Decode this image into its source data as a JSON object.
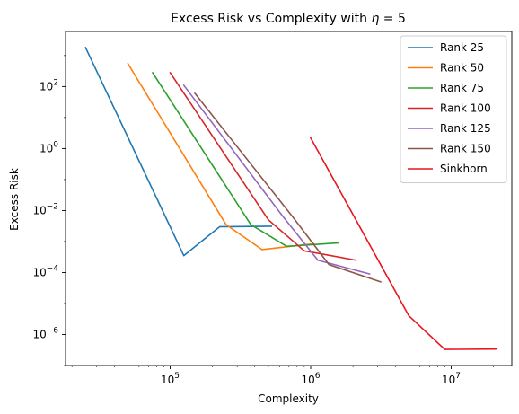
{
  "chart_data": {
    "type": "line",
    "title": "Excess Risk vs Complexity with η = 5",
    "title_parts": {
      "before": "Excess Risk vs Complexity with ",
      "symbol": "η",
      "after": " = 5"
    },
    "xlabel": "Complexity",
    "ylabel": "Excess Risk",
    "x_scale": "log",
    "y_scale": "log",
    "xlim": [
      18000,
      27000000
    ],
    "ylim": [
      1e-07,
      6000
    ],
    "x_ticks": [
      {
        "value": 100000,
        "base": "10",
        "exp": "5"
      },
      {
        "value": 1000000,
        "base": "10",
        "exp": "6"
      },
      {
        "value": 10000000,
        "base": "10",
        "exp": "7"
      }
    ],
    "y_ticks": [
      {
        "value": 1e-06,
        "base": "10",
        "exp": "−6"
      },
      {
        "value": 0.0001,
        "base": "10",
        "exp": "−4"
      },
      {
        "value": 0.01,
        "base": "10",
        "exp": "−2"
      },
      {
        "value": 1,
        "base": "10",
        "exp": "0"
      },
      {
        "value": 100,
        "base": "10",
        "exp": "2"
      }
    ],
    "grid": false,
    "legend_position": "top-right",
    "series": [
      {
        "name": "Rank 25",
        "color": "#1f77b4",
        "x": [
          25000,
          125000,
          225000,
          525000
        ],
        "y": [
          1800,
          0.00035,
          0.003,
          0.0031
        ]
      },
      {
        "name": "Rank 50",
        "color": "#ff7f0e",
        "x": [
          50000,
          250000,
          450000,
          1050000
        ],
        "y": [
          550,
          0.0035,
          0.00055,
          0.00085
        ]
      },
      {
        "name": "Rank 75",
        "color": "#2ca02c",
        "x": [
          75000,
          375000,
          675000,
          1575000
        ],
        "y": [
          280,
          0.0035,
          0.0007,
          0.0009
        ]
      },
      {
        "name": "Rank 100",
        "color": "#d62728",
        "x": [
          100000,
          500000,
          900000,
          2100000
        ],
        "y": [
          280,
          0.005,
          0.0005,
          0.00025
        ]
      },
      {
        "name": "Rank 125",
        "color": "#9467bd",
        "x": [
          125000,
          625000,
          1125000,
          2625000
        ],
        "y": [
          110,
          0.007,
          0.00025,
          9e-05
        ]
      },
      {
        "name": "Rank 150",
        "color": "#8c564b",
        "x": [
          150000,
          750000,
          1350000,
          3150000
        ],
        "y": [
          60,
          0.006,
          0.00018,
          5e-05
        ]
      },
      {
        "name": "Sinkhorn",
        "color": "#e8141e",
        "x": [
          1000000,
          5000000,
          9000000,
          21000000
        ],
        "y": [
          2.2,
          4e-06,
          3.3e-07,
          3.4e-07
        ]
      }
    ]
  }
}
